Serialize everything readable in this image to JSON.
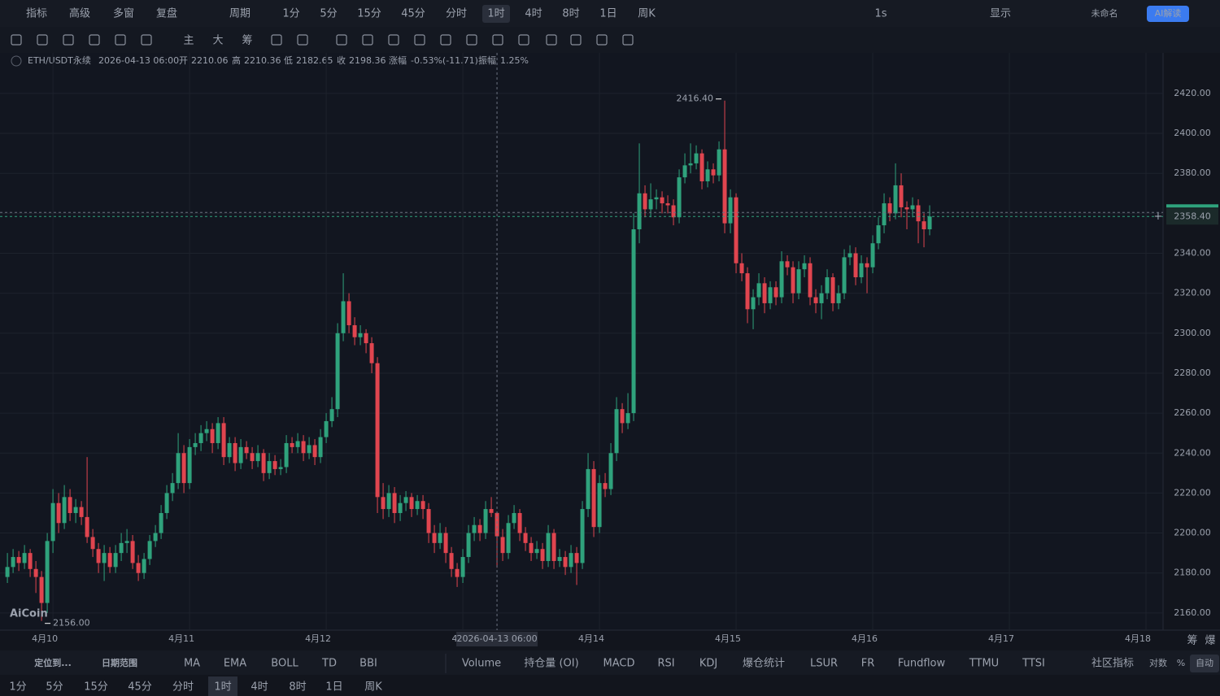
{
  "top_toolbar": {
    "tools": [
      "指标",
      "高级",
      "多窗",
      "复盘",
      "周期"
    ],
    "periods": [
      "1分",
      "5分",
      "15分",
      "45分",
      "分时",
      "1时",
      "4时",
      "8时",
      "1日",
      "周K"
    ],
    "active_period": 5,
    "right": [
      "1s",
      "显示",
      "未命名",
      "AI解读"
    ]
  },
  "draw_toolbar": [
    "主",
    "大",
    "筹"
  ],
  "info": {
    "symbol": "ETH/USDT永续",
    "time": "2026-04-13 06:00",
    "open_label": "开",
    "high_label": "高",
    "low_label": "低",
    "close_label": "收",
    "change_label": "涨幅",
    "change": "-0.53%(-11.71)",
    "amplitude_label": "振幅",
    "amplitude": "1.25%"
  },
  "logo": "AiCoin",
  "chart_data": {
    "type": "candlestick",
    "up_color": "#2fa27c",
    "down_color": "#e0454f",
    "grid": true,
    "ylim": [
      2151.4,
      2440.3
    ],
    "yticks": [
      {
        "value": 2160,
        "label": "2160.00"
      },
      {
        "value": 2180,
        "label": "2180.00"
      },
      {
        "value": 2200,
        "label": "2200.00"
      },
      {
        "value": 2220,
        "label": "2220.00"
      },
      {
        "value": 2240,
        "label": "2240.00"
      },
      {
        "value": 2260,
        "label": "2260.00"
      },
      {
        "value": 2280,
        "label": "2280.00"
      },
      {
        "value": 2300,
        "label": "2300.00"
      },
      {
        "value": 2320,
        "label": "2320.00"
      },
      {
        "value": 2340,
        "label": "2340.00"
      },
      {
        "value": 2360,
        "label": "2360.00"
      },
      {
        "value": 2380,
        "label": "2380.00"
      },
      {
        "value": 2400,
        "label": "2400.00"
      },
      {
        "value": 2420,
        "label": "2420.00"
      }
    ],
    "xlim": [
      -1.3,
      203
    ],
    "xticks": [
      {
        "value": 8,
        "label": "4月10"
      },
      {
        "value": 32,
        "label": "4月11"
      },
      {
        "value": 56,
        "label": "4月12"
      },
      {
        "value": 80,
        "label": "4"
      },
      {
        "value": 104,
        "label": "4月14"
      },
      {
        "value": 128,
        "label": "4月15"
      },
      {
        "value": 152,
        "label": "4月16"
      },
      {
        "value": 176,
        "label": "4月17"
      },
      {
        "value": 200,
        "label": "4月18"
      }
    ],
    "crosshair": {
      "index": 86,
      "label": "2026-04-13 06:00"
    },
    "last_price": {
      "value": 2358.4,
      "label": "2358.40"
    },
    "high_marker": {
      "index": 126,
      "label": "2416.40"
    },
    "low_marker": {
      "index": 6,
      "label": "2156.00"
    },
    "candles": [
      [
        2178,
        2190,
        2175,
        2183
      ],
      [
        2183,
        2192,
        2180,
        2188
      ],
      [
        2188,
        2191,
        2181,
        2185
      ],
      [
        2185,
        2194,
        2182,
        2190
      ],
      [
        2190,
        2192,
        2178,
        2182
      ],
      [
        2182,
        2186,
        2170,
        2178
      ],
      [
        2178,
        2181,
        2156,
        2165
      ],
      [
        2165,
        2200,
        2160,
        2196
      ],
      [
        2196,
        2222,
        2190,
        2215
      ],
      [
        2215,
        2220,
        2200,
        2205
      ],
      [
        2205,
        2224,
        2202,
        2218
      ],
      [
        2218,
        2222,
        2206,
        2210
      ],
      [
        2210,
        2217,
        2205,
        2213
      ],
      [
        2213,
        2216,
        2204,
        2208
      ],
      [
        2208,
        2238,
        2195,
        2198
      ],
      [
        2198,
        2202,
        2188,
        2192
      ],
      [
        2192,
        2195,
        2180,
        2185
      ],
      [
        2185,
        2194,
        2176,
        2190
      ],
      [
        2190,
        2193,
        2180,
        2183
      ],
      [
        2183,
        2194,
        2180,
        2190
      ],
      [
        2190,
        2200,
        2186,
        2195
      ],
      [
        2195,
        2202,
        2190,
        2196
      ],
      [
        2196,
        2199,
        2182,
        2185
      ],
      [
        2185,
        2189,
        2176,
        2180
      ],
      [
        2180,
        2190,
        2177,
        2187
      ],
      [
        2187,
        2199,
        2184,
        2196
      ],
      [
        2196,
        2204,
        2193,
        2200
      ],
      [
        2200,
        2214,
        2197,
        2210
      ],
      [
        2210,
        2224,
        2207,
        2220
      ],
      [
        2220,
        2230,
        2216,
        2225
      ],
      [
        2225,
        2250,
        2222,
        2240
      ],
      [
        2240,
        2244,
        2220,
        2225
      ],
      [
        2225,
        2247,
        2222,
        2243
      ],
      [
        2243,
        2250,
        2239,
        2245
      ],
      [
        2245,
        2254,
        2241,
        2250
      ],
      [
        2250,
        2256,
        2246,
        2252
      ],
      [
        2252,
        2255,
        2240,
        2245
      ],
      [
        2245,
        2258,
        2242,
        2255
      ],
      [
        2255,
        2258,
        2234,
        2238
      ],
      [
        2238,
        2248,
        2235,
        2245
      ],
      [
        2245,
        2248,
        2231,
        2235
      ],
      [
        2235,
        2247,
        2232,
        2243
      ],
      [
        2243,
        2246,
        2237,
        2240
      ],
      [
        2240,
        2243,
        2232,
        2236
      ],
      [
        2236,
        2244,
        2233,
        2240
      ],
      [
        2240,
        2242,
        2226,
        2230
      ],
      [
        2230,
        2240,
        2227,
        2236
      ],
      [
        2236,
        2239,
        2229,
        2232
      ],
      [
        2232,
        2237,
        2229,
        2233
      ],
      [
        2233,
        2249,
        2230,
        2245
      ],
      [
        2245,
        2248,
        2240,
        2243
      ],
      [
        2243,
        2250,
        2240,
        2246
      ],
      [
        2246,
        2249,
        2236,
        2240
      ],
      [
        2240,
        2248,
        2237,
        2244
      ],
      [
        2244,
        2247,
        2234,
        2238
      ],
      [
        2238,
        2252,
        2235,
        2248
      ],
      [
        2248,
        2260,
        2245,
        2256
      ],
      [
        2256,
        2268,
        2253,
        2262
      ],
      [
        2262,
        2305,
        2258,
        2300
      ],
      [
        2300,
        2330,
        2296,
        2316
      ],
      [
        2316,
        2320,
        2300,
        2304
      ],
      [
        2304,
        2308,
        2294,
        2298
      ],
      [
        2298,
        2304,
        2294,
        2300
      ],
      [
        2300,
        2302,
        2290,
        2295
      ],
      [
        2295,
        2298,
        2280,
        2285
      ],
      [
        2285,
        2288,
        2210,
        2218
      ],
      [
        2218,
        2225,
        2207,
        2212
      ],
      [
        2212,
        2224,
        2208,
        2220
      ],
      [
        2220,
        2223,
        2205,
        2210
      ],
      [
        2210,
        2219,
        2206,
        2215
      ],
      [
        2215,
        2221,
        2211,
        2218
      ],
      [
        2218,
        2220,
        2208,
        2212
      ],
      [
        2212,
        2219,
        2209,
        2216
      ],
      [
        2216,
        2219,
        2207,
        2212
      ],
      [
        2212,
        2215,
        2195,
        2200
      ],
      [
        2200,
        2204,
        2190,
        2195
      ],
      [
        2195,
        2205,
        2192,
        2200
      ],
      [
        2200,
        2203,
        2185,
        2190
      ],
      [
        2190,
        2193,
        2178,
        2182
      ],
      [
        2182,
        2185,
        2173,
        2178
      ],
      [
        2178,
        2192,
        2175,
        2188
      ],
      [
        2188,
        2204,
        2185,
        2200
      ],
      [
        2200,
        2208,
        2196,
        2204
      ],
      [
        2204,
        2207,
        2196,
        2200
      ],
      [
        2200,
        2216,
        2197,
        2212
      ],
      [
        2212,
        2218,
        2208,
        2210.06
      ],
      [
        2210.06,
        2210.36,
        2182.65,
        2198.36
      ],
      [
        2198,
        2202,
        2186,
        2190
      ],
      [
        2190,
        2209,
        2187,
        2205
      ],
      [
        2205,
        2214,
        2202,
        2210
      ],
      [
        2210,
        2212,
        2196,
        2200
      ],
      [
        2200,
        2203,
        2191,
        2195
      ],
      [
        2195,
        2198,
        2186,
        2190
      ],
      [
        2190,
        2196,
        2187,
        2192
      ],
      [
        2192,
        2195,
        2182,
        2186
      ],
      [
        2186,
        2204,
        2183,
        2200
      ],
      [
        2200,
        2202,
        2182,
        2186
      ],
      [
        2186,
        2192,
        2183,
        2188
      ],
      [
        2188,
        2191,
        2179,
        2183
      ],
      [
        2183,
        2194,
        2180,
        2190
      ],
      [
        2190,
        2193,
        2174,
        2185
      ],
      [
        2185,
        2216,
        2182,
        2212
      ],
      [
        2212,
        2240,
        2208,
        2232
      ],
      [
        2232,
        2236,
        2198,
        2203
      ],
      [
        2203,
        2229,
        2200,
        2225
      ],
      [
        2225,
        2230,
        2218,
        2222
      ],
      [
        2222,
        2245,
        2219,
        2240
      ],
      [
        2240,
        2268,
        2236,
        2262
      ],
      [
        2262,
        2265,
        2250,
        2255
      ],
      [
        2255,
        2270,
        2252,
        2260
      ],
      [
        2260,
        2360,
        2256,
        2352
      ],
      [
        2352,
        2395,
        2345,
        2370
      ],
      [
        2370,
        2374,
        2358,
        2362
      ],
      [
        2362,
        2375,
        2358,
        2367
      ],
      [
        2367,
        2372,
        2362,
        2368
      ],
      [
        2368,
        2371,
        2360,
        2365
      ],
      [
        2365,
        2369,
        2360,
        2364
      ],
      [
        2364,
        2367,
        2354,
        2358
      ],
      [
        2358,
        2382,
        2355,
        2378
      ],
      [
        2378,
        2390,
        2375,
        2384
      ],
      [
        2384,
        2395,
        2380,
        2385
      ],
      [
        2385,
        2394,
        2382,
        2390
      ],
      [
        2390,
        2392,
        2372,
        2376
      ],
      [
        2376,
        2386,
        2373,
        2382
      ],
      [
        2382,
        2385,
        2375,
        2379
      ],
      [
        2379,
        2396,
        2376,
        2392
      ],
      [
        2392,
        2416.4,
        2350,
        2355
      ],
      [
        2355,
        2372,
        2350,
        2368
      ],
      [
        2368,
        2370,
        2330,
        2335
      ],
      [
        2335,
        2340,
        2326,
        2330
      ],
      [
        2330,
        2333,
        2305,
        2312
      ],
      [
        2312,
        2322,
        2302,
        2318
      ],
      [
        2318,
        2330,
        2314,
        2325
      ],
      [
        2325,
        2328,
        2310,
        2315
      ],
      [
        2315,
        2326,
        2312,
        2323
      ],
      [
        2323,
        2326,
        2314,
        2318
      ],
      [
        2318,
        2341,
        2315,
        2336
      ],
      [
        2336,
        2339,
        2329,
        2333
      ],
      [
        2333,
        2336,
        2315,
        2320
      ],
      [
        2320,
        2336,
        2317,
        2332
      ],
      [
        2332,
        2339,
        2328,
        2335
      ],
      [
        2335,
        2338,
        2314,
        2318
      ],
      [
        2318,
        2322,
        2310,
        2315
      ],
      [
        2315,
        2324,
        2307,
        2320
      ],
      [
        2320,
        2332,
        2317,
        2328
      ],
      [
        2328,
        2330,
        2311,
        2315
      ],
      [
        2315,
        2324,
        2312,
        2320
      ],
      [
        2320,
        2342,
        2317,
        2338
      ],
      [
        2338,
        2344,
        2334,
        2340
      ],
      [
        2340,
        2343,
        2324,
        2328
      ],
      [
        2328,
        2339,
        2325,
        2335
      ],
      [
        2335,
        2338,
        2320,
        2333
      ],
      [
        2333,
        2349,
        2330,
        2345
      ],
      [
        2345,
        2358,
        2342,
        2354
      ],
      [
        2354,
        2370,
        2350,
        2365
      ],
      [
        2365,
        2368,
        2356,
        2360
      ],
      [
        2360,
        2385,
        2357,
        2374
      ],
      [
        2374,
        2380,
        2358,
        2363
      ],
      [
        2363,
        2366,
        2352,
        2362
      ],
      [
        2362,
        2368,
        2358,
        2364
      ],
      [
        2364,
        2367,
        2345,
        2356
      ],
      [
        2356,
        2360,
        2343,
        2352
      ],
      [
        2352,
        2364,
        2349,
        2358.4
      ]
    ]
  },
  "indicator_bar": {
    "left": [
      "定位到...",
      "日期范围",
      "MA",
      "EMA",
      "BOLL",
      "TD",
      "BBI"
    ],
    "indicators": [
      "Volume",
      "持仓量 (OI)",
      "MACD",
      "RSI",
      "KDJ",
      "爆仓统计",
      "LSUR",
      "FR",
      "Fundflow",
      "TTMU",
      "TTSI"
    ],
    "right": [
      "社区指标",
      "对数",
      "%",
      "自动"
    ]
  },
  "corner": [
    "筹",
    "爆"
  ],
  "period_bar": {
    "periods": [
      "1分",
      "5分",
      "15分",
      "45分",
      "分时",
      "1时",
      "4时",
      "8时",
      "1日",
      "周K"
    ],
    "active": 5
  }
}
